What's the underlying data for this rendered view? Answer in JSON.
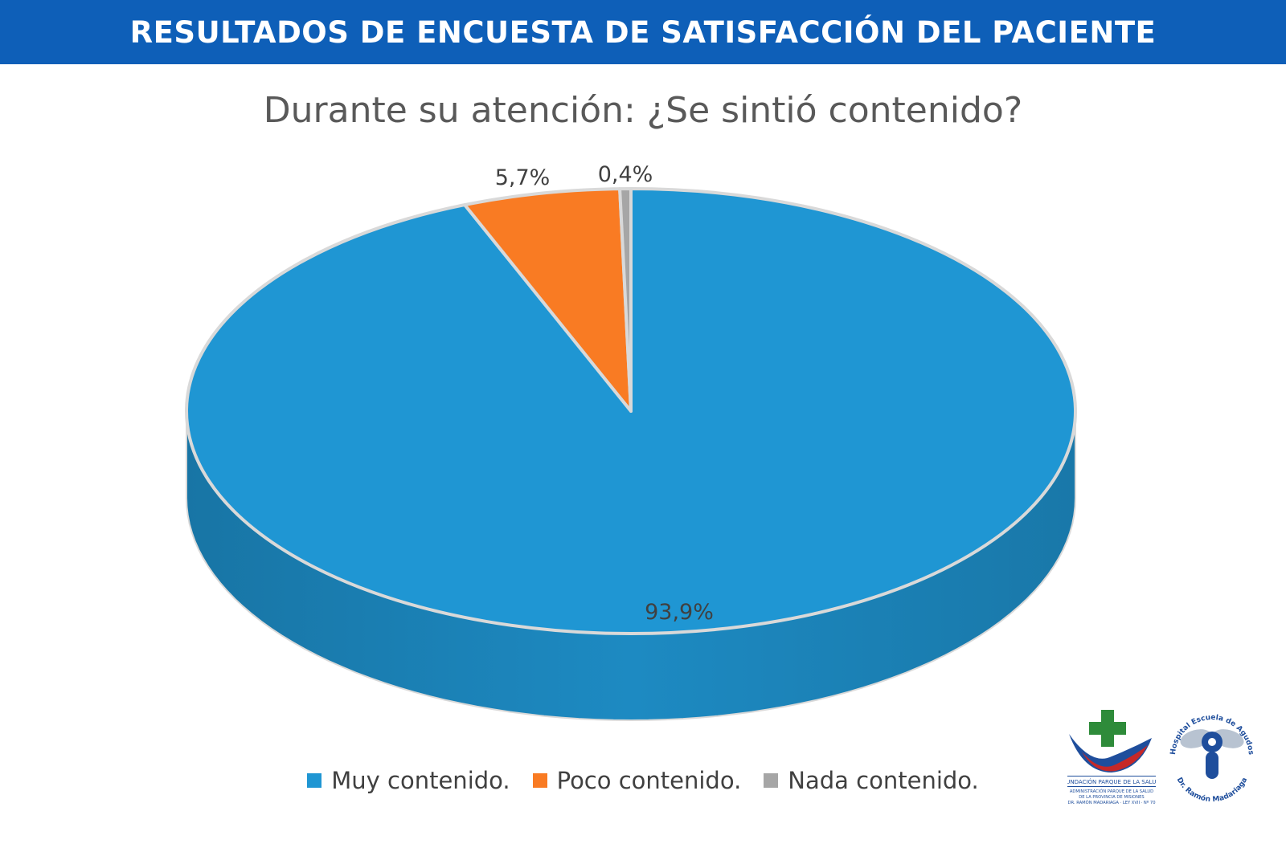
{
  "header": {
    "title": "RESULTADOS DE ENCUESTA DE SATISFACCIÓN DEL PACIENTE"
  },
  "chart_data": {
    "type": "pie",
    "title": "Durante su atención: ¿Se sintió contenido?",
    "categories": [
      "Muy contenido.",
      "Poco contenido.",
      "Nada contenido."
    ],
    "values": [
      93.9,
      5.7,
      0.4
    ],
    "data_labels": [
      "93,9%",
      "5,7%",
      "0,4%"
    ],
    "colors": [
      "#1f96d3",
      "#f97b23",
      "#a6a6a6"
    ],
    "legend": "bottom",
    "style": "3d"
  },
  "logos": {
    "fundacion": {
      "name": "FUNDACIÓN PARQUE DE LA SALUD",
      "line1": "ADMINISTRACIÓN PARQUE DE LA SALUD",
      "line2": "DE LA PROVINCIA DE MISIONES",
      "line3": "DR. RAMÓN MADARIAGA · LEY XVII · Nº 70"
    },
    "hospital": {
      "arc_top": "Hospital Escuela de Agudos",
      "arc_bottom": "Dr. Ramón Madariaga"
    }
  }
}
